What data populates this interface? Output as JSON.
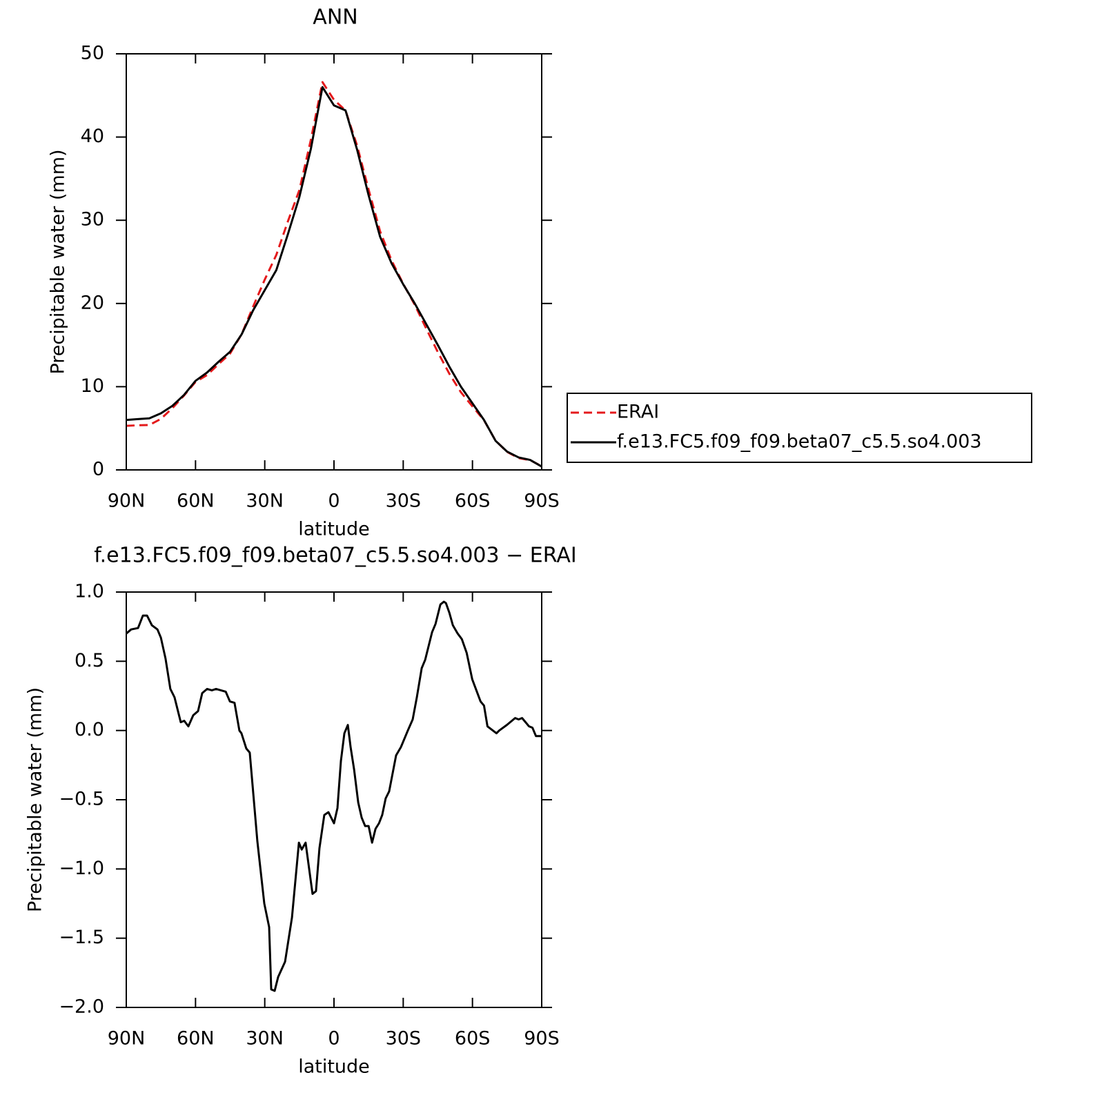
{
  "chart_data": [
    {
      "type": "line",
      "title": "ANN",
      "xlabel": "latitude",
      "ylabel": "Precipitable water (mm)",
      "x": [
        90,
        85,
        80,
        75,
        70,
        65,
        60,
        55,
        50,
        45,
        40,
        35,
        30,
        25,
        20,
        15,
        10,
        5,
        0,
        -5,
        -10,
        -15,
        -20,
        -25,
        -30,
        -35,
        -40,
        -45,
        -50,
        -55,
        -60,
        -65,
        -70,
        -75,
        -80,
        -85,
        -90
      ],
      "series": [
        {
          "name": "ERAI",
          "color": "#e41a1c",
          "line_style": "dashed",
          "values": [
            5.3,
            5.36,
            5.4,
            6.13,
            7.43,
            8.93,
            10.57,
            11.4,
            12.71,
            13.99,
            16.32,
            19.65,
            22.87,
            25.83,
            29.85,
            33.62,
            39.7,
            46.6,
            44.47,
            43.2,
            38.98,
            33.69,
            28.65,
            25.14,
            22.35,
            19.84,
            16.96,
            14.15,
            11.55,
            9.33,
            7.63,
            5.97,
            3.52,
            2.16,
            1.42,
            1.17,
            0.44
          ]
        },
        {
          "name": "f.e13.FC5.f09_f09.beta07_c5.5.so4.003",
          "color": "#000000",
          "line_style": "solid",
          "values": [
            6.0,
            6.1,
            6.2,
            6.8,
            7.7,
            9.0,
            10.7,
            11.7,
            13.0,
            14.2,
            16.3,
            19.2,
            21.6,
            24.0,
            28.3,
            32.8,
            38.6,
            46.0,
            43.8,
            43.2,
            38.5,
            33.0,
            28.0,
            24.8,
            22.3,
            20.0,
            17.5,
            15.0,
            12.4,
            10.0,
            8.0,
            6.0,
            3.5,
            2.2,
            1.5,
            1.2,
            0.4
          ]
        }
      ],
      "xlim": [
        90,
        -90
      ],
      "xticks": [
        {
          "value": 90,
          "label": "90N"
        },
        {
          "value": 60,
          "label": "60N"
        },
        {
          "value": 30,
          "label": "30N"
        },
        0,
        {
          "value": -30,
          "label": "30S"
        },
        {
          "value": -60,
          "label": "60S"
        },
        {
          "value": -90,
          "label": "90S"
        }
      ],
      "ylim": [
        0,
        50
      ],
      "yticks": [
        0,
        10,
        20,
        30,
        40,
        50
      ],
      "legend": "right"
    },
    {
      "type": "line",
      "title": "f.e13.FC5.f09_f09.beta07_c5.5.so4.003 − ERAI",
      "xlabel": "latitude",
      "ylabel": "Precipitable water (mm)",
      "x": [
        90.0,
        87.9,
        84.9,
        82.8,
        81.0,
        78.9,
        76.5,
        75.0,
        73.0,
        70.9,
        69.1,
        66.4,
        64.9,
        63.1,
        61.0,
        58.9,
        57.1,
        55.0,
        52.9,
        51.1,
        49.0,
        46.9,
        45.1,
        43.1,
        41.0,
        40.1,
        38.0,
        36.5,
        35.0,
        33.2,
        30.2,
        28.1,
        27.2,
        25.7,
        24.2,
        21.2,
        18.2,
        15.2,
        14.0,
        12.3,
        9.3,
        7.8,
        6.3,
        4.2,
        2.4,
        0,
        -1.5,
        -3.0,
        -4.5,
        -6.0,
        -7.2,
        -8.7,
        -10.5,
        -12.0,
        -13.5,
        -15.0,
        -16.5,
        -18.0,
        -19.5,
        -20.9,
        -22.4,
        -23.9,
        -25.4,
        -26.9,
        -29.0,
        -32.0,
        -34.1,
        -35.9,
        -38.0,
        -39.5,
        -42.5,
        -44.0,
        -46.1,
        -47.6,
        -48.5,
        -50.0,
        -51.5,
        -53.6,
        -55.4,
        -57.5,
        -59.9,
        -63.5,
        -65.0,
        -66.5,
        -70.4,
        -71.6,
        -74.9,
        -78.5,
        -80.0,
        -81.5,
        -83.0,
        -84.5,
        -86.0,
        -87.5,
        -90.0
      ],
      "series": [
        {
          "color": "#000000",
          "line_style": "solid",
          "values": [
            0.7,
            0.73,
            0.74,
            0.83,
            0.83,
            0.76,
            0.73,
            0.67,
            0.52,
            0.3,
            0.24,
            0.06,
            0.07,
            0.03,
            0.11,
            0.14,
            0.27,
            0.3,
            0.29,
            0.3,
            0.29,
            0.28,
            0.21,
            0.2,
            0.0,
            -0.02,
            -0.13,
            -0.16,
            -0.45,
            -0.8,
            -1.25,
            -1.42,
            -1.87,
            -1.88,
            -1.78,
            -1.67,
            -1.35,
            -0.81,
            -0.86,
            -0.81,
            -1.18,
            -1.16,
            -0.85,
            -0.61,
            -0.59,
            -0.67,
            -0.56,
            -0.22,
            -0.02,
            0.04,
            -0.12,
            -0.28,
            -0.52,
            -0.63,
            -0.69,
            -0.69,
            -0.81,
            -0.71,
            -0.67,
            -0.61,
            -0.49,
            -0.44,
            -0.31,
            -0.18,
            -0.12,
            0.0,
            0.08,
            0.24,
            0.45,
            0.51,
            0.71,
            0.77,
            0.91,
            0.93,
            0.92,
            0.85,
            0.76,
            0.7,
            0.66,
            0.56,
            0.37,
            0.21,
            0.18,
            0.03,
            -0.02,
            0.0,
            0.04,
            0.09,
            0.08,
            0.09,
            0.06,
            0.03,
            0.02,
            -0.04,
            -0.04
          ]
        }
      ],
      "xlim": [
        90,
        -90
      ],
      "xticks": [
        {
          "value": 90,
          "label": "90N"
        },
        {
          "value": 60,
          "label": "60N"
        },
        {
          "value": 30,
          "label": "30N"
        },
        0,
        {
          "value": -30,
          "label": "30S"
        },
        {
          "value": -60,
          "label": "60S"
        },
        {
          "value": -90,
          "label": "90S"
        }
      ],
      "ylim": [
        -2,
        1
      ],
      "yticks": [
        {
          "value": -2,
          "label": "−2.0"
        },
        {
          "value": -1.5,
          "label": "−1.5"
        },
        {
          "value": -1,
          "label": "−1.0"
        },
        {
          "value": -0.5,
          "label": "−0.5"
        },
        {
          "value": 0,
          "label": "0.0"
        },
        {
          "value": 0.5,
          "label": "0.5"
        },
        {
          "value": 1,
          "label": "1.0"
        }
      ]
    }
  ]
}
